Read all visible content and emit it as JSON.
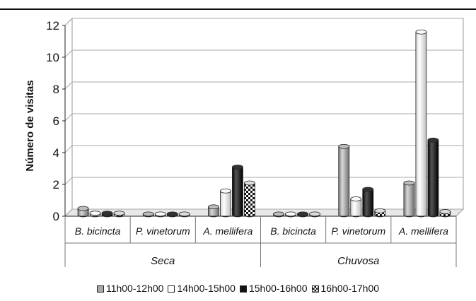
{
  "chart_data": {
    "type": "bar",
    "style": "3d-cylinder",
    "ylabel": "Número de visitas",
    "ylim": [
      0,
      12
    ],
    "yticks": [
      "0",
      "2",
      "4",
      "6",
      "8",
      "10",
      "12"
    ],
    "grid": true,
    "legend_position": "bottom",
    "groups": [
      {
        "name": "Seca",
        "categories": [
          "B. bicincta",
          "P. vinetorum",
          "A. mellifera"
        ]
      },
      {
        "name": "Chuvosa",
        "categories": [
          "B. bicincta",
          "P. vinetorum",
          "A. mellifera"
        ]
      }
    ],
    "series": [
      {
        "name": "11h00-12h00",
        "pattern": "gray",
        "values": [
          0.4,
          0.05,
          0.5,
          0.05,
          4.3,
          2.0
        ]
      },
      {
        "name": "14h00-15h00",
        "pattern": "white",
        "values": [
          0.1,
          0.05,
          1.5,
          0.05,
          1.0,
          11.5
        ]
      },
      {
        "name": "15h00-16h00",
        "pattern": "black",
        "values": [
          0.1,
          0.05,
          3.0,
          0.05,
          1.6,
          4.7
        ]
      },
      {
        "name": "16h00-17h00",
        "pattern": "checker",
        "values": [
          0.1,
          0.05,
          2.0,
          0.05,
          0.25,
          0.2
        ]
      }
    ]
  }
}
